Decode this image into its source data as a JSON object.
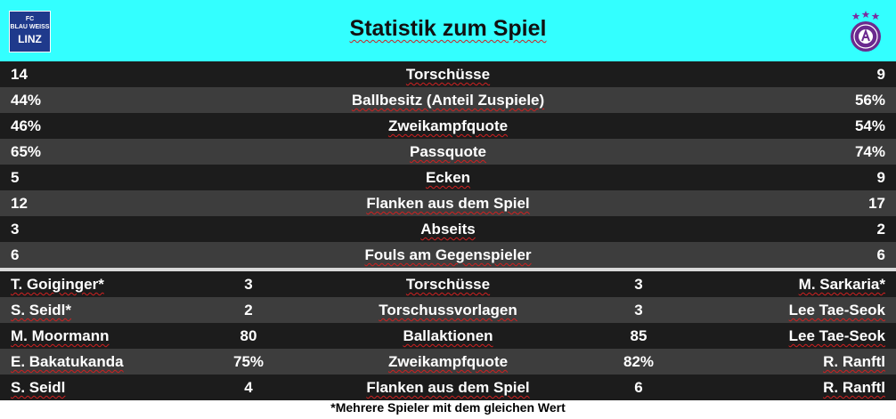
{
  "header": {
    "title": "Statistik zum Spiel",
    "left_logo_lines": [
      "FC",
      "BLAU WEISS",
      "LINZ"
    ],
    "accent": "#33ffff"
  },
  "team_stats": [
    {
      "left": "14",
      "label": "Torschüsse",
      "right": "9"
    },
    {
      "left": "44%",
      "label": "Ballbesitz (Anteil Zuspiele)",
      "right": "56%"
    },
    {
      "left": "46%",
      "label": "Zweikampfquote",
      "right": "54%"
    },
    {
      "left": "65%",
      "label": "Passquote",
      "right": "74%"
    },
    {
      "left": "5",
      "label": "Ecken",
      "right": "9"
    },
    {
      "left": "12",
      "label": "Flanken aus dem Spiel",
      "right": "17"
    },
    {
      "left": "3",
      "label": "Abseits",
      "right": "2"
    },
    {
      "left": "6",
      "label": "Fouls am Gegenspieler",
      "right": "6"
    }
  ],
  "player_stats": [
    {
      "left_player": "T. Goiginger*",
      "left_value": "3",
      "label": "Torschüsse",
      "right_value": "3",
      "right_player": "M. Sarkaria*"
    },
    {
      "left_player": "S. Seidl*",
      "left_value": "2",
      "label": "Torschussvorlagen",
      "right_value": "3",
      "right_player": "Lee Tae-Seok"
    },
    {
      "left_player": "M. Moormann",
      "left_value": "80",
      "label": "Ballaktionen",
      "right_value": "85",
      "right_player": "Lee Tae-Seok"
    },
    {
      "left_player": "E. Bakatukanda",
      "left_value": "75%",
      "label": "Zweikampfquote",
      "right_value": "82%",
      "right_player": "R. Ranftl"
    },
    {
      "left_player": "S. Seidl",
      "left_value": "4",
      "label": "Flanken aus dem Spiel",
      "right_value": "6",
      "right_player": "R. Ranftl"
    }
  ],
  "footnote": "*Mehrere Spieler mit dem gleichen Wert"
}
